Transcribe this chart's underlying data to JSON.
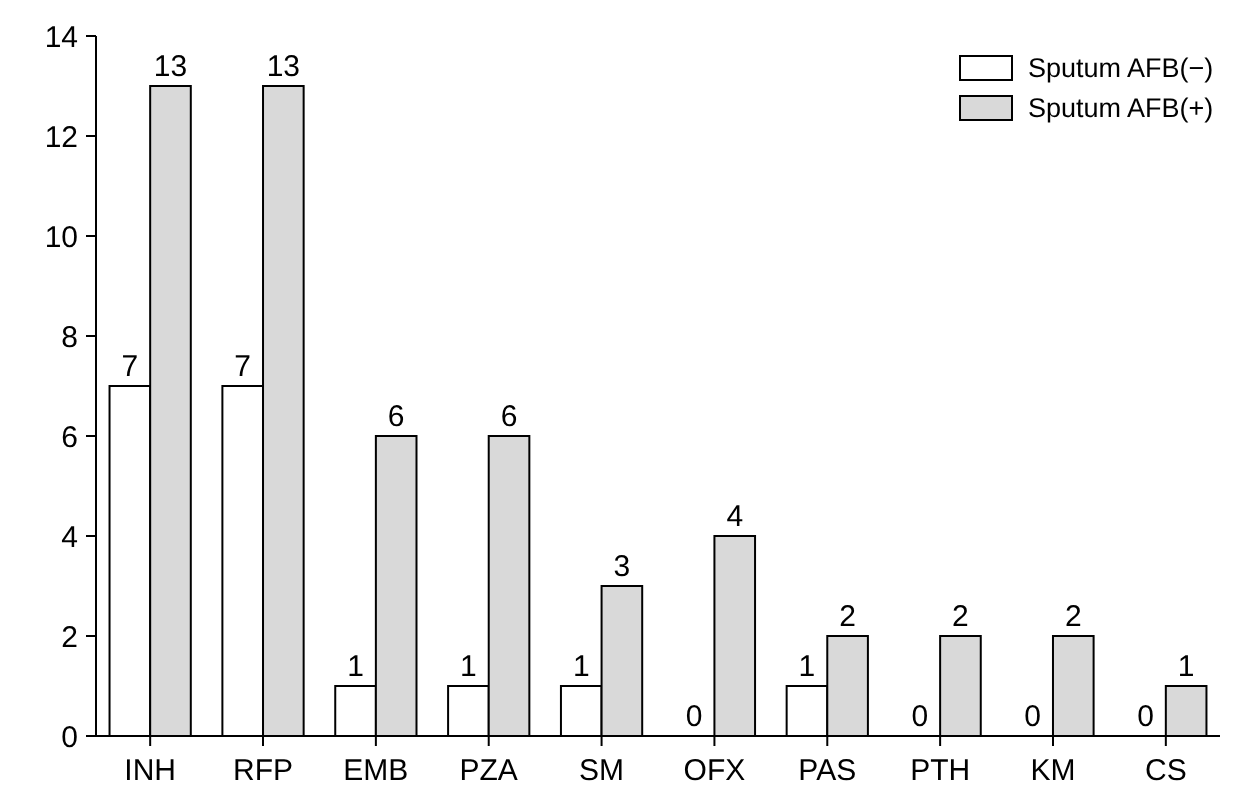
{
  "chart_data": {
    "type": "bar",
    "categories": [
      "INH",
      "RFP",
      "EMB",
      "PZA",
      "SM",
      "OFX",
      "PAS",
      "PTH",
      "KM",
      "CS"
    ],
    "series": [
      {
        "name": "Sputum AFB(−)",
        "color": "#ffffff",
        "values": [
          7,
          7,
          1,
          1,
          1,
          0,
          1,
          0,
          0,
          0
        ]
      },
      {
        "name": "Sputum AFB(+)",
        "color": "#d9d9d9",
        "values": [
          13,
          13,
          6,
          6,
          3,
          4,
          2,
          2,
          2,
          1
        ]
      }
    ],
    "ylim": [
      0,
      14
    ],
    "yticks": [
      0,
      2,
      4,
      6,
      8,
      10,
      12,
      14
    ],
    "data_labels": true,
    "legend": "top right",
    "grid": false
  }
}
